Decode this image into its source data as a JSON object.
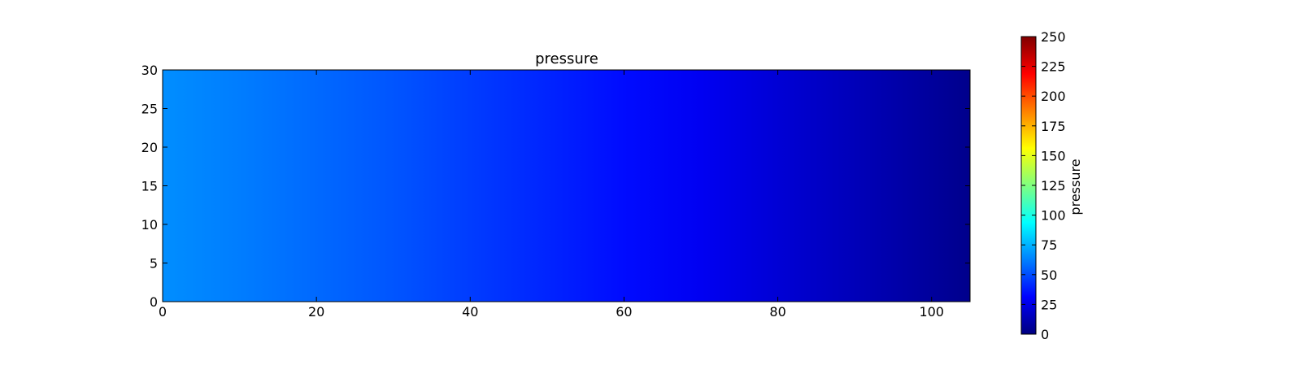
{
  "chart_data": {
    "type": "heatmap",
    "title": "pressure",
    "xlabel": "",
    "ylabel": "",
    "xlim": [
      0,
      105
    ],
    "ylim": [
      0,
      30
    ],
    "x_ticks": [
      0,
      20,
      40,
      60,
      80,
      100
    ],
    "y_ticks": [
      0,
      5,
      10,
      15,
      20,
      25,
      30
    ],
    "x_tick_labels": [
      "0",
      "20",
      "40",
      "60",
      "80",
      "100"
    ],
    "y_tick_labels": [
      "0",
      "5",
      "10",
      "15",
      "20",
      "25",
      "30"
    ],
    "colormap": "jet",
    "field_description": "pressure varies along x only, decreasing from left to right; constant along y",
    "x": [
      0,
      10,
      20,
      30,
      40,
      50,
      60,
      70,
      80,
      90,
      100,
      105
    ],
    "values": [
      66,
      62,
      57,
      52,
      46,
      40,
      34,
      28,
      21,
      14,
      7,
      3
    ],
    "colorbar": {
      "label": "pressure",
      "range": [
        0,
        250
      ],
      "ticks": [
        0,
        25,
        50,
        75,
        100,
        125,
        150,
        175,
        200,
        225,
        250
      ],
      "tick_labels": [
        "0",
        "25",
        "50",
        "75",
        "100",
        "125",
        "150",
        "175",
        "200",
        "225",
        "250"
      ]
    },
    "grid": false,
    "legend": "none"
  }
}
